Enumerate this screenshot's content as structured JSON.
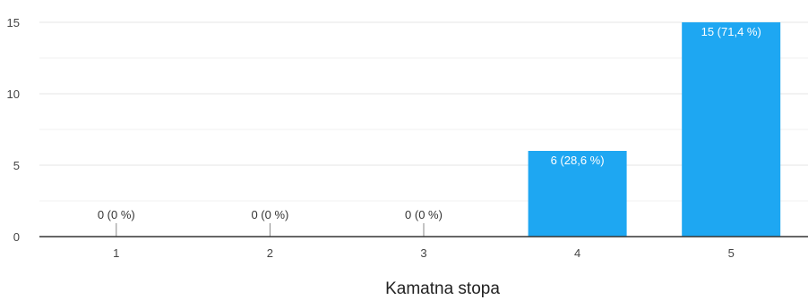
{
  "chart_data": {
    "type": "bar",
    "title": "",
    "xlabel": "Kamatna stopa",
    "ylabel": "",
    "categories": [
      "1",
      "2",
      "3",
      "4",
      "5"
    ],
    "values": [
      0,
      0,
      0,
      6,
      15
    ],
    "data_labels": [
      "0 (0 %)",
      "0 (0 %)",
      "0 (0 %)",
      "6 (28,6 %)",
      "15 (71,4 %)"
    ],
    "yticks": [
      "0",
      "5",
      "10",
      "15"
    ],
    "ytick_values": [
      0,
      5,
      10,
      15
    ],
    "ylim": [
      0,
      15
    ],
    "grid": true,
    "legend": "none",
    "colors": {
      "bar": "#1ea7f2",
      "grid": "#e6e6e6",
      "axis": "#333333",
      "label_inside": "#ffffff",
      "label_outside": "#333333"
    }
  }
}
